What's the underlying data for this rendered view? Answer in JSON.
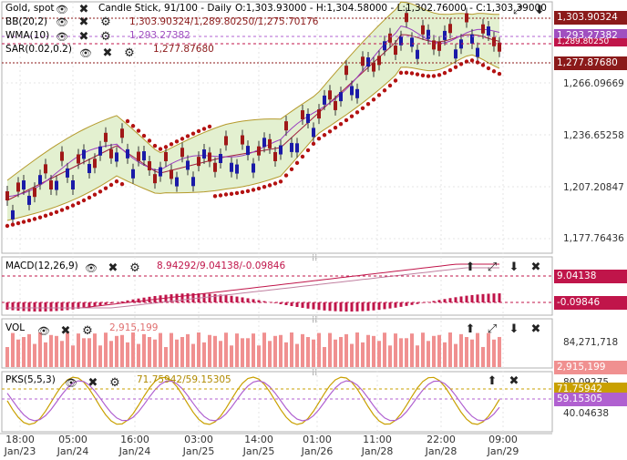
{
  "header": {
    "symbol": "Gold, spot",
    "chart_type": "Candle Stick, 91/100 - Daily",
    "ohlc": "O:1,303.93000 - H:1,304.58000 - L:1,302.76000 - C:1,303.39000"
  },
  "indicators": {
    "bb": {
      "name": "BB(20,2)",
      "values": "1,303.90324/1,289.80250/1,275.70176"
    },
    "wma": {
      "name": "WMA(10)",
      "values": "1,293.27382"
    },
    "sar": {
      "name": "SAR(0.02,0.2)",
      "values": "1,277.87680"
    },
    "macd": {
      "name": "MACD(12,26,9)",
      "values": "8.94292/9.04138/-0.09846"
    },
    "vol": {
      "name": "VOL",
      "values": "2,915,199"
    },
    "pks": {
      "name": "PKS(5,5,3)",
      "values": "71.75942/59.15305"
    }
  },
  "price_axis": {
    "ticks": [
      "1,266.09669",
      "1,236.65258",
      "1,207.20847",
      "1,177.76436"
    ],
    "labels": {
      "bb_upper": "1,303.90324",
      "wma": "1,293.27382",
      "bb_mid": "1,289.80250",
      "sar": "1,277.87680"
    }
  },
  "macd_axis": {
    "labels": {
      "signal": "9.04138",
      "hist": "-0.09846"
    }
  },
  "vol_axis": {
    "tick": "84,271,718",
    "label": "2,915,199"
  },
  "pks_axis": {
    "ticks": [
      "80.09275",
      "40.04638"
    ],
    "labels": {
      "k": "71.75942",
      "d": "59.15305"
    }
  },
  "time_axis": [
    {
      "t": "18:00",
      "d": "Jan/23"
    },
    {
      "t": "05:00",
      "d": "Jan/24"
    },
    {
      "t": "16:00",
      "d": "Jan/24"
    },
    {
      "t": "03:00",
      "d": "Jan/25"
    },
    {
      "t": "14:00",
      "d": "Jan/25"
    },
    {
      "t": "01:00",
      "d": "Jan/26"
    },
    {
      "t": "11:00",
      "d": "Jan/28"
    },
    {
      "t": "22:00",
      "d": "Jan/28"
    },
    {
      "t": "09:00",
      "d": "Jan/29"
    }
  ],
  "colors": {
    "up": "#1a1aa8",
    "down": "#a01818",
    "bb_fill": "#e3f0d0",
    "bb_line": "#b59a2c",
    "wma": "#9a3fc0",
    "sar": "#b31212",
    "macd_hist": "#c0154a",
    "vol": "#f09090",
    "pks_k": "#c9a000",
    "pks_d": "#b060d0"
  }
}
